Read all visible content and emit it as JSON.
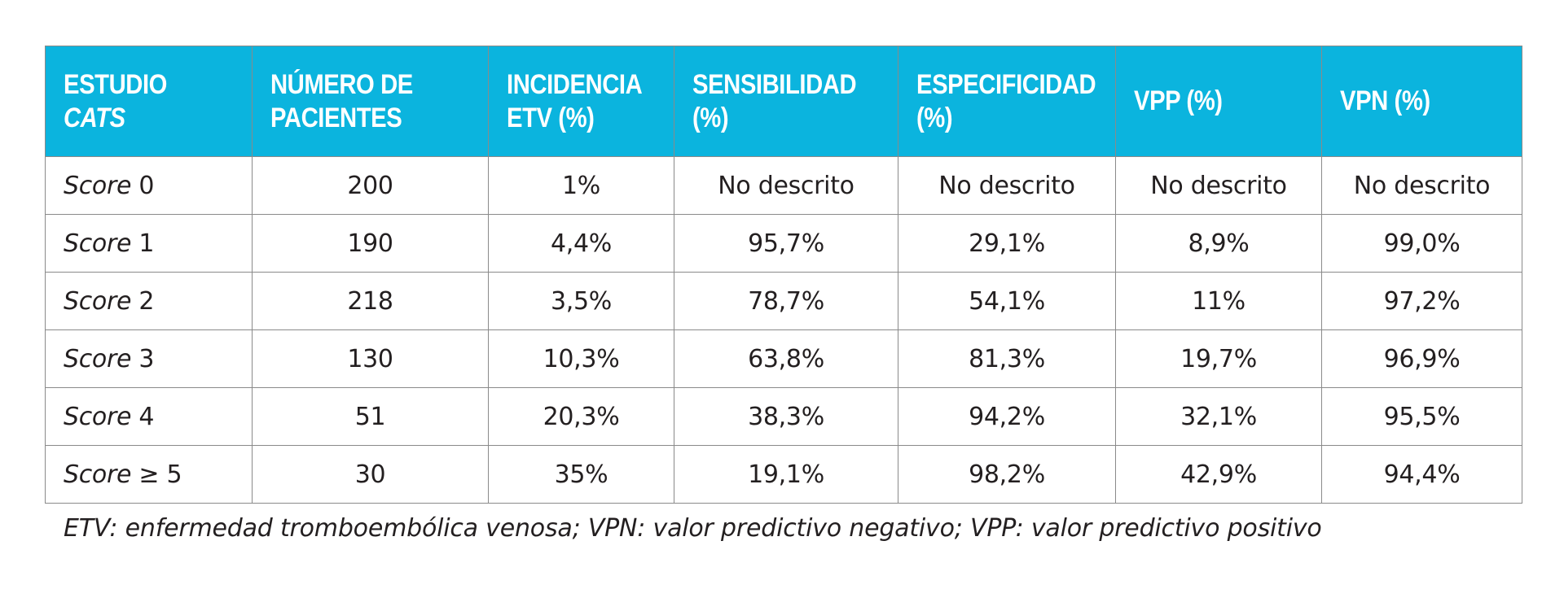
{
  "header": {
    "col0_main": "ESTUDIO ",
    "col0_italic": "CATS",
    "col1": "NÚMERO DE\nPACIENTES",
    "col2": "INCIDENCIA\nETV (%)",
    "col3": "SENSIBILIDAD\n(%)",
    "col4": "ESPECIFICIDAD\n(%)",
    "col5": "VPP (%)",
    "col6": "VPN (%)"
  },
  "rows": [
    {
      "score_word": "Score",
      "score_value": " 0",
      "patients": "200",
      "incidence": "1%",
      "sensitivity": "No descrito",
      "specificity": "No descrito",
      "ppv": "No descrito",
      "npv": "No descrito"
    },
    {
      "score_word": "Score",
      "score_value": " 1",
      "patients": "190",
      "incidence": "4,4%",
      "sensitivity": "95,7%",
      "specificity": "29,1%",
      "ppv": "8,9%",
      "npv": "99,0%"
    },
    {
      "score_word": "Score",
      "score_value": " 2",
      "patients": "218",
      "incidence": "3,5%",
      "sensitivity": "78,7%",
      "specificity": "54,1%",
      "ppv": "11%",
      "npv": "97,2%"
    },
    {
      "score_word": "Score",
      "score_value": " 3",
      "patients": "130",
      "incidence": "10,3%",
      "sensitivity": "63,8%",
      "specificity": "81,3%",
      "ppv": "19,7%",
      "npv": "96,9%"
    },
    {
      "score_word": "Score",
      "score_value": " 4",
      "patients": "51",
      "incidence": "20,3%",
      "sensitivity": "38,3%",
      "specificity": "94,2%",
      "ppv": "32,1%",
      "npv": "95,5%"
    },
    {
      "score_word": "Score",
      "score_value": " ≥ 5",
      "patients": "30",
      "incidence": "35%",
      "sensitivity": "19,1%",
      "specificity": "98,2%",
      "ppv": "42,9%",
      "npv": "94,4%"
    }
  ],
  "footnote": "ETV: enfermedad tromboembólica venosa; VPN: valor predictivo negativo; VPP: valor predictivo positivo",
  "colors": {
    "header_bg": "#0bb4de",
    "header_text": "#ffffff",
    "border": "#8a8a8a",
    "body_text": "#231f20"
  }
}
